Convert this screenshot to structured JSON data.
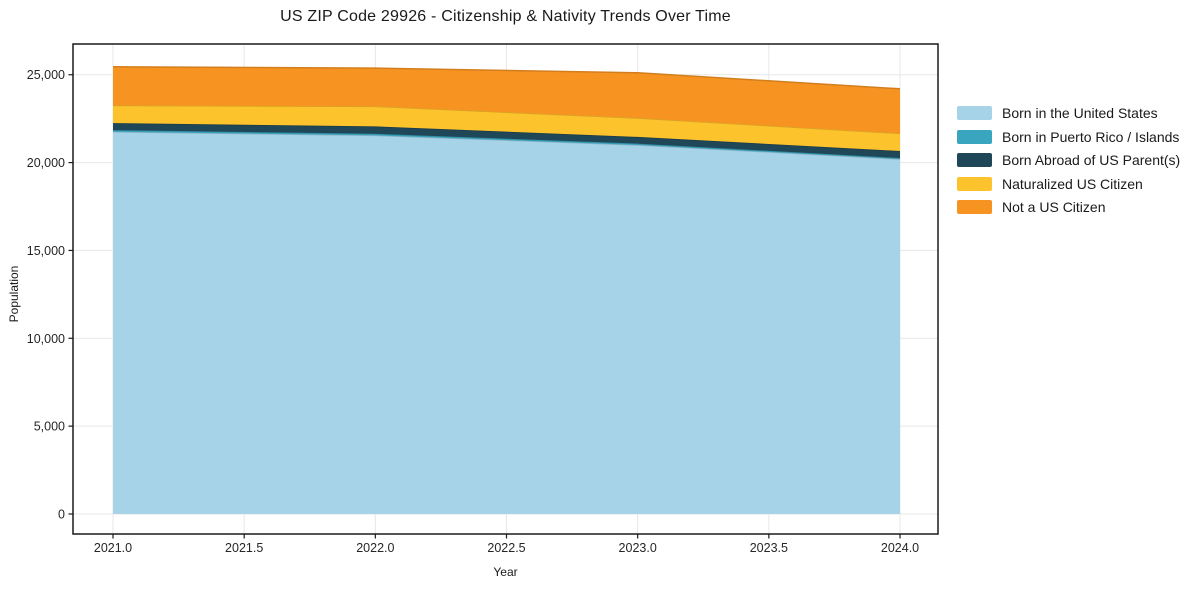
{
  "chart_data": {
    "type": "area",
    "stacked": true,
    "title": "US ZIP Code 29926 - Citizenship & Nativity Trends Over Time",
    "xlabel": "Year",
    "ylabel": "Population",
    "grid": true,
    "legend_position": "right-outside",
    "x": [
      2021,
      2022,
      2023,
      2024
    ],
    "series": [
      {
        "name": "Born in the United States",
        "color": "#a6d3e8",
        "values": [
          21750,
          21550,
          21000,
          20200
        ]
      },
      {
        "name": "Born in Puerto Rico / Islands",
        "color": "#3aa5bf",
        "values": [
          100,
          90,
          80,
          60
        ]
      },
      {
        "name": "Born Abroad of US Parent(s)",
        "color": "#1f4757",
        "values": [
          400,
          420,
          380,
          400
        ]
      },
      {
        "name": "Naturalized US Citizen",
        "color": "#fcc32c",
        "values": [
          1000,
          1140,
          1070,
          1000
        ]
      },
      {
        "name": "Not a US Citizen",
        "color": "#f79421",
        "values": [
          2200,
          2180,
          2580,
          2540
        ]
      }
    ],
    "totals": [
      25450,
      25380,
      25110,
      24200
    ],
    "xlim": [
      2020.8475,
      2024.1448
    ],
    "ylim": [
      -1140,
      26750
    ],
    "x_ticks": [
      {
        "v": 2021.0,
        "label": "2021.0"
      },
      {
        "v": 2021.5,
        "label": "2021.5"
      },
      {
        "v": 2022.0,
        "label": "2022.0"
      },
      {
        "v": 2022.5,
        "label": "2022.5"
      },
      {
        "v": 2023.0,
        "label": "2023.0"
      },
      {
        "v": 2023.5,
        "label": "2023.5"
      },
      {
        "v": 2024.0,
        "label": "2024.0"
      }
    ],
    "y_ticks": [
      {
        "v": 0,
        "label": "0"
      },
      {
        "v": 5000,
        "label": "5,000"
      },
      {
        "v": 10000,
        "label": "10,000"
      },
      {
        "v": 15000,
        "label": "15,000"
      },
      {
        "v": 20000,
        "label": "20,000"
      },
      {
        "v": 25000,
        "label": "25,000"
      }
    ],
    "colors": {
      "grid": "#e7e7e7",
      "spine": "#1a1a1a",
      "tick_label": "#262626",
      "background": "#ffffff"
    }
  }
}
